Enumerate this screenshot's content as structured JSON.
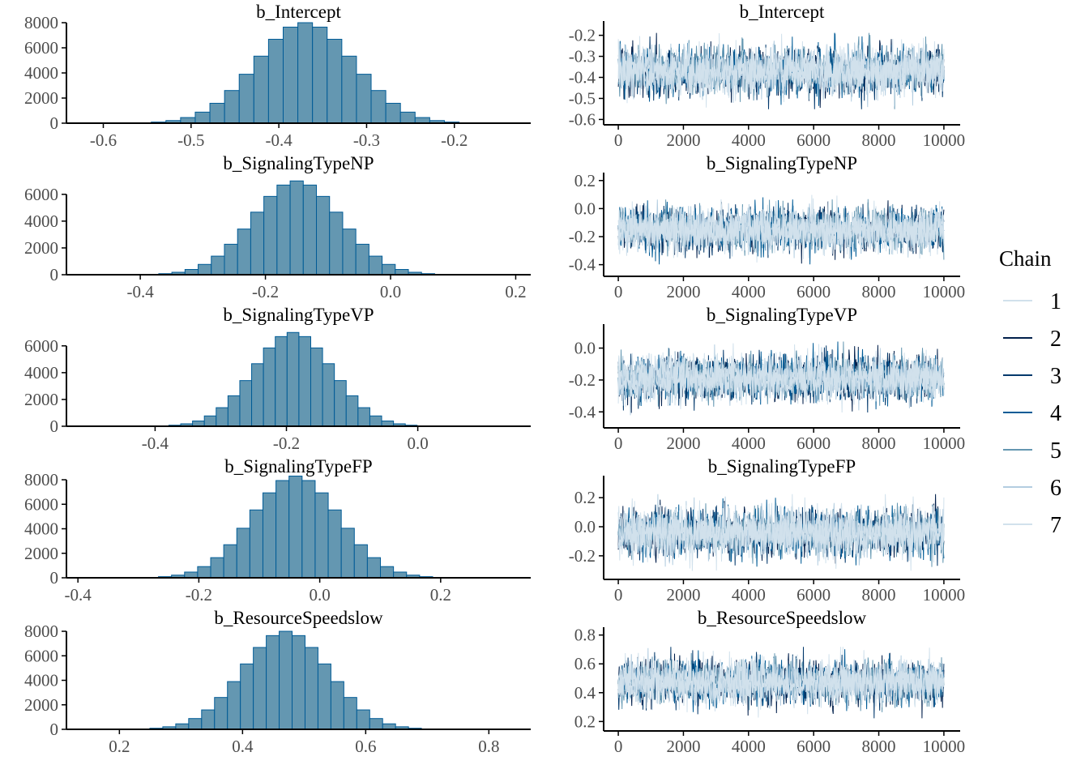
{
  "chart_data": {
    "type": "bar",
    "description_kind": "mcmc-hist-and-trace",
    "colors": {
      "hist_fill": "#6497b1",
      "hist_stroke": "#005b96",
      "axis": "#000000",
      "tick_text": "#4d4d4d",
      "chains": [
        "#d1e1ec",
        "#011f4b",
        "#03396c",
        "#005b96",
        "#6497b1",
        "#b3cde0",
        "#d1e1ec"
      ]
    },
    "legend": {
      "title": "Chain",
      "position": "right",
      "labels": [
        "1",
        "2",
        "3",
        "4",
        "5",
        "6",
        "7"
      ]
    },
    "panels": [
      {
        "parameter": "b_Intercept",
        "hist": {
          "xlim": [
            -0.642,
            -0.113
          ],
          "ylim": [
            0,
            8000
          ],
          "xticks": [
            "-0.6",
            "-0.5",
            "-0.4",
            "-0.3",
            "-0.2"
          ],
          "xtick_values": [
            -0.6,
            -0.5,
            -0.4,
            -0.3,
            -0.2
          ],
          "yticks": [
            "0",
            "2000",
            "4000",
            "6000",
            "8000"
          ],
          "ytick_values": [
            0,
            2000,
            4000,
            6000,
            8000
          ],
          "bin_center_first": -0.5704,
          "bin_width": 0.0167,
          "counts": [
            12,
            32,
            88,
            208,
            448,
            880,
            1584,
            2600,
            3896,
            5336,
            6680,
            7648,
            8000,
            7648,
            6680,
            5336,
            3896,
            2600,
            1584,
            880,
            448,
            208,
            88,
            32,
            12
          ]
        },
        "trace": {
          "xlim": [
            -450,
            10500
          ],
          "ylim": [
            -0.61,
            -0.14
          ],
          "xticks": [
            "0",
            "2000",
            "4000",
            "6000",
            "8000",
            "10000"
          ],
          "xtick_values": [
            0,
            2000,
            4000,
            6000,
            8000,
            10000
          ],
          "yticks": [
            "-0.2",
            "-0.3",
            "-0.4",
            "-0.5",
            "-0.6"
          ],
          "ytick_values": [
            -0.2,
            -0.3,
            -0.4,
            -0.5,
            -0.6
          ],
          "iterations": 10000,
          "mean": -0.37,
          "sd": 0.055
        }
      },
      {
        "parameter": "b_SignalingTypeNP",
        "hist": {
          "xlim": [
            -0.518,
            0.224
          ],
          "ylim": [
            0,
            7500
          ],
          "xticks": [
            "-0.4",
            "-0.2",
            "0.0",
            "0.2"
          ],
          "xtick_values": [
            -0.4,
            -0.2,
            0.0,
            0.2
          ],
          "yticks": [
            "0",
            "2000",
            "4000",
            "6000"
          ],
          "ytick_values": [
            0,
            2000,
            4000,
            6000
          ],
          "bin_center_first": -0.402,
          "bin_width": 0.021,
          "counts": [
            11,
            28,
            77,
            182,
            392,
            770,
            1386,
            2275,
            3409,
            4669,
            5845,
            6692,
            7000,
            6692,
            5845,
            4669,
            3409,
            2275,
            1386,
            770,
            392,
            182,
            77,
            28,
            11
          ]
        },
        "trace": {
          "xlim": [
            -450,
            10500
          ],
          "ylim": [
            -0.46,
            0.245
          ],
          "xticks": [
            "0",
            "2000",
            "4000",
            "6000",
            "8000",
            "10000"
          ],
          "xtick_values": [
            0,
            2000,
            4000,
            6000,
            8000,
            10000
          ],
          "yticks": [
            "0.2",
            "0.0",
            "-0.2",
            "-0.4"
          ],
          "ytick_values": [
            0.2,
            0.0,
            -0.2,
            -0.4
          ],
          "iterations": 10000,
          "mean": -0.15,
          "sd": 0.075
        }
      },
      {
        "parameter": "b_SignalingTypeVP",
        "hist": {
          "xlim": [
            -0.535,
            0.172
          ],
          "ylim": [
            0,
            7500
          ],
          "xticks": [
            "-0.4",
            "-0.2",
            "0.0"
          ],
          "xtick_values": [
            -0.4,
            -0.2,
            0.0
          ],
          "yticks": [
            "0",
            "2000",
            "4000",
            "6000"
          ],
          "ytick_values": [
            0,
            2000,
            4000,
            6000
          ],
          "bin_center_first": -0.406,
          "bin_width": 0.018,
          "counts": [
            11,
            28,
            77,
            182,
            392,
            770,
            1386,
            2275,
            3409,
            4669,
            5845,
            6692,
            7000,
            6692,
            5845,
            4669,
            3409,
            2275,
            1386,
            770,
            392,
            182,
            77,
            28,
            11
          ]
        },
        "trace": {
          "xlim": [
            -450,
            10500
          ],
          "ylim": [
            -0.48,
            0.14
          ],
          "xticks": [
            "0",
            "2000",
            "4000",
            "6000",
            "8000",
            "10000"
          ],
          "xtick_values": [
            0,
            2000,
            4000,
            6000,
            8000,
            10000
          ],
          "yticks": [
            "0.0",
            "-0.2",
            "-0.4"
          ],
          "ytick_values": [
            0.0,
            -0.2,
            -0.4
          ],
          "iterations": 10000,
          "mean": -0.19,
          "sd": 0.07
        }
      },
      {
        "parameter": "b_SignalingTypeFP",
        "hist": {
          "xlim": [
            -0.419,
            0.349
          ],
          "ylim": [
            0,
            8200
          ],
          "xticks": [
            "-0.4",
            "-0.2",
            "0.0",
            "0.2"
          ],
          "xtick_values": [
            -0.4,
            -0.2,
            0.0,
            0.2
          ],
          "yticks": [
            "0",
            "2000",
            "4000",
            "6000",
            "8000"
          ],
          "ytick_values": [
            0,
            2000,
            4000,
            6000,
            8000
          ],
          "bin_center_first": -0.2992,
          "bin_width": 0.0216,
          "counts": [
            12,
            33,
            91,
            216,
            465,
            913,
            1643,
            2698,
            4042,
            5536,
            6931,
            7935,
            8300,
            7935,
            6931,
            5536,
            4042,
            2698,
            1643,
            913,
            465,
            216,
            91,
            33,
            12
          ]
        },
        "trace": {
          "xlim": [
            -450,
            10500
          ],
          "ylim": [
            -0.34,
            0.34
          ],
          "xticks": [
            "0",
            "2000",
            "4000",
            "6000",
            "8000",
            "10000"
          ],
          "xtick_values": [
            0,
            2000,
            4000,
            6000,
            8000,
            10000
          ],
          "yticks": [
            "0.2",
            "0.0",
            "-0.2"
          ],
          "ytick_values": [
            0.2,
            0.0,
            -0.2
          ],
          "iterations": 10000,
          "mean": -0.04,
          "sd": 0.08
        }
      },
      {
        "parameter": "b_ResourceSpeedslow",
        "hist": {
          "xlim": [
            0.114,
            0.868
          ],
          "ylim": [
            0,
            8200
          ],
          "xticks": [
            "0.2",
            "0.4",
            "0.6",
            "0.8"
          ],
          "xtick_values": [
            0.2,
            0.4,
            0.6,
            0.8
          ],
          "yticks": [
            "0",
            "2000",
            "4000",
            "6000",
            "8000"
          ],
          "ytick_values": [
            0,
            2000,
            4000,
            6000,
            8000
          ],
          "bin_center_first": 0.218,
          "bin_width": 0.021,
          "counts": [
            12,
            32,
            88,
            208,
            448,
            880,
            1584,
            2600,
            3896,
            5336,
            6680,
            7648,
            8000,
            7648,
            6680,
            5336,
            3896,
            2600,
            1584,
            880,
            448,
            208,
            88,
            32,
            12
          ]
        },
        "trace": {
          "xlim": [
            -450,
            10500
          ],
          "ylim": [
            0.157,
            0.843
          ],
          "xticks": [
            "0",
            "2000",
            "4000",
            "6000",
            "8000",
            "10000"
          ],
          "xtick_values": [
            0,
            2000,
            4000,
            6000,
            8000,
            10000
          ],
          "yticks": [
            "0.8",
            "0.6",
            "0.4",
            "0.2"
          ],
          "ytick_values": [
            0.8,
            0.6,
            0.4,
            0.2
          ],
          "iterations": 10000,
          "mean": 0.47,
          "sd": 0.075
        }
      }
    ]
  }
}
